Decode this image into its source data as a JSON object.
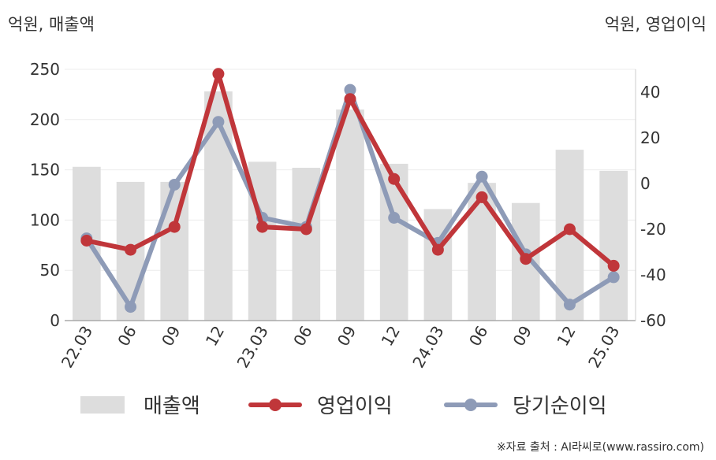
{
  "chart_data": {
    "type": "bar",
    "left_unit": "억원, 매출액",
    "right_unit": "억원, 영업이익",
    "categories": [
      "22.03",
      "06",
      "09",
      "12",
      "23.03",
      "06",
      "09",
      "12",
      "24.03",
      "06",
      "09",
      "12",
      "25.03"
    ],
    "left_axis": {
      "ylim": [
        0,
        250
      ],
      "ticks": [
        "0",
        "50",
        "100",
        "150",
        "200",
        "250"
      ]
    },
    "right_axis": {
      "ylim": [
        -60,
        50
      ],
      "ticks": [
        "-60",
        "-40",
        "-20",
        "0",
        "20",
        "40"
      ]
    },
    "grid": true,
    "legend_position": "bottom",
    "series": [
      {
        "name": "매출액",
        "type": "bar",
        "axis": "left",
        "color": "#dddddd",
        "values": [
          153,
          138,
          138,
          228,
          158,
          152,
          210,
          156,
          111,
          137,
          117,
          170,
          149
        ]
      },
      {
        "name": "영업이익",
        "type": "line",
        "axis": "right",
        "color": "#c0363a",
        "values": [
          -25,
          -29,
          -19,
          48,
          -19,
          -20,
          37,
          2,
          -29,
          -6,
          -33,
          -20,
          -36
        ]
      },
      {
        "name": "당기순이익",
        "type": "line",
        "axis": "right",
        "color": "#8e9bb7",
        "values": [
          -24,
          -54,
          -0.5,
          27,
          -15,
          -19,
          41,
          -15,
          -26,
          3,
          -31,
          -53,
          -41
        ]
      }
    ]
  },
  "source_text": "※자료 출처 : AI라씨로(www.rassiro.com)"
}
